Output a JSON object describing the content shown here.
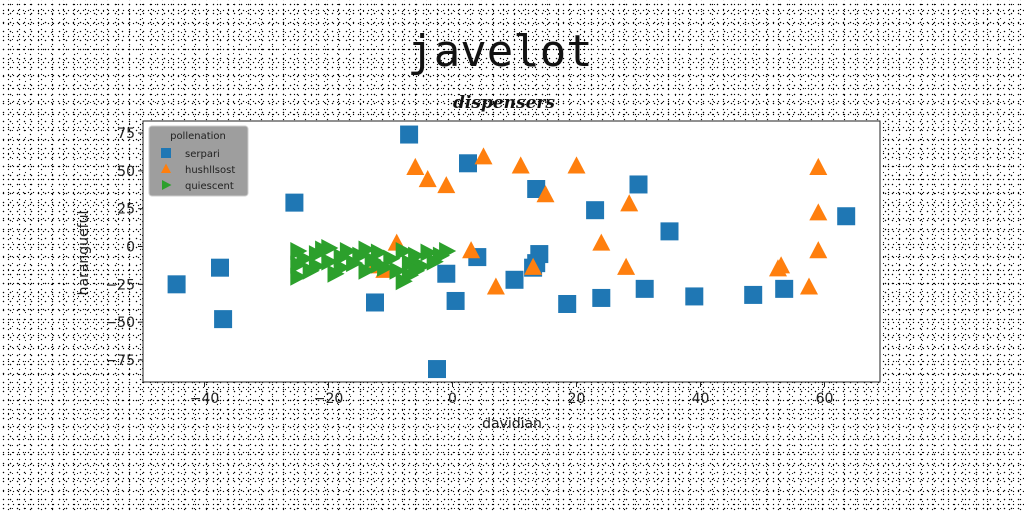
{
  "chart_data": {
    "type": "scatter",
    "title": "javelot",
    "subtitle": "dispensers",
    "xlabel": "davidian",
    "ylabel": "harangueful",
    "xlim": [
      -50,
      68
    ],
    "ylim": [
      -90,
      82
    ],
    "xticks": [
      -40,
      -20,
      0,
      20,
      40,
      60
    ],
    "yticks": [
      -75,
      -50,
      -25,
      0,
      25,
      50,
      75
    ],
    "grid": false,
    "legend": {
      "title": "pollenation",
      "placement": "top-left"
    },
    "series": [
      {
        "name": "serpari",
        "marker": "square",
        "color": "#1f77b4",
        "points": [
          [
            -44.5,
            -25
          ],
          [
            -37.5,
            -14
          ],
          [
            -37,
            -48
          ],
          [
            -25.5,
            29
          ],
          [
            -12.5,
            -37
          ],
          [
            -7,
            74
          ],
          [
            -2.5,
            -81
          ],
          [
            -1,
            -18
          ],
          [
            0.5,
            -36
          ],
          [
            2.5,
            55
          ],
          [
            4,
            -7
          ],
          [
            10,
            -22
          ],
          [
            13,
            -14
          ],
          [
            13.5,
            -11
          ],
          [
            14,
            -5
          ],
          [
            13.5,
            38
          ],
          [
            18.5,
            -38
          ],
          [
            23,
            24
          ],
          [
            24,
            -34
          ],
          [
            30,
            41
          ],
          [
            31,
            -28
          ],
          [
            35,
            10
          ],
          [
            39,
            -33
          ],
          [
            48.5,
            -32
          ],
          [
            53.5,
            -28
          ],
          [
            63.5,
            20
          ]
        ]
      },
      {
        "name": "hushllsost",
        "marker": "triangle-up",
        "color": "#ff7f0e",
        "points": [
          [
            -12.5,
            -13
          ],
          [
            -11,
            -16
          ],
          [
            -9,
            2
          ],
          [
            -6,
            52
          ],
          [
            -4,
            44
          ],
          [
            -1,
            40
          ],
          [
            3,
            -3
          ],
          [
            5,
            59
          ],
          [
            7,
            -27
          ],
          [
            11,
            53
          ],
          [
            13,
            -14
          ],
          [
            15,
            34
          ],
          [
            20,
            53
          ],
          [
            24,
            2
          ],
          [
            28,
            -14
          ],
          [
            28.5,
            28
          ],
          [
            52.5,
            -15
          ],
          [
            53,
            -13
          ],
          [
            57.5,
            -27
          ],
          [
            59,
            52
          ],
          [
            59,
            22
          ],
          [
            59,
            -3
          ]
        ]
      },
      {
        "name": "quiescent",
        "marker": "triangle-right",
        "color": "#2ca02c",
        "points": [
          [
            -25,
            -3
          ],
          [
            -25,
            -12
          ],
          [
            -25,
            -20
          ],
          [
            -24,
            -8
          ],
          [
            -23,
            -16
          ],
          [
            -22,
            -5
          ],
          [
            -22,
            -13
          ],
          [
            -21,
            -2
          ],
          [
            -20,
            -10
          ],
          [
            -19,
            -18
          ],
          [
            -18,
            -7
          ],
          [
            -18,
            -14
          ],
          [
            -17,
            -3
          ],
          [
            -16,
            -11
          ],
          [
            -15,
            -6
          ],
          [
            -14,
            -16
          ],
          [
            -14,
            -2
          ],
          [
            -13,
            -9
          ],
          [
            -12,
            -4
          ],
          [
            -11,
            -14
          ],
          [
            -10,
            -8
          ],
          [
            -9,
            -16
          ],
          [
            -8,
            -3
          ],
          [
            -7,
            -11
          ],
          [
            -7,
            -19
          ],
          [
            -6,
            -6
          ],
          [
            -5,
            -13
          ],
          [
            -4,
            -4
          ],
          [
            -3,
            -10
          ],
          [
            -2,
            -6
          ],
          [
            -1,
            -3
          ],
          [
            -8,
            -23
          ],
          [
            -12,
            -12
          ],
          [
            -20,
            -1
          ],
          [
            -6,
            -16
          ]
        ]
      }
    ]
  }
}
